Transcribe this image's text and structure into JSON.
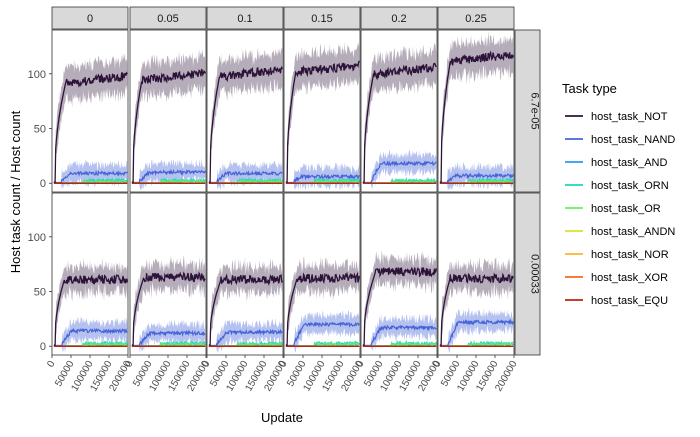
{
  "chart_data": {
    "type": "line",
    "xlabel": "Update",
    "ylabel": "Host task count / Host count",
    "legend_title": "Task type",
    "legend_placement": "right",
    "x_ticks": [
      "50000",
      "100000",
      "150000",
      "200000"
    ],
    "x_tick_values": [
      50000,
      100000,
      150000,
      200000
    ],
    "y_ticks": [
      "0",
      "50",
      "100"
    ],
    "y_tick_values": [
      0,
      50,
      100
    ],
    "xlim": [
      0,
      200000
    ],
    "ylim": [
      -8,
      140
    ],
    "grid": false,
    "col_facets": [
      "0",
      "0.05",
      "0.1",
      "0.15",
      "0.2",
      "0.25"
    ],
    "row_facets": [
      "6.7e-05",
      "0.00033"
    ],
    "series": [
      {
        "name": "host_task_NOT",
        "color": "#2D1339"
      },
      {
        "name": "host_task_NAND",
        "color": "#4664D8"
      },
      {
        "name": "host_task_AND",
        "color": "#2B9AF0"
      },
      {
        "name": "host_task_ORN",
        "color": "#23D5B6"
      },
      {
        "name": "host_task_OR",
        "color": "#62F45A"
      },
      {
        "name": "host_task_ANDN",
        "color": "#D4E332"
      },
      {
        "name": "host_task_NOR",
        "color": "#FBB52E"
      },
      {
        "name": "host_task_XOR",
        "color": "#F06B1B"
      },
      {
        "name": "host_task_EQU",
        "color": "#BC250B"
      }
    ],
    "panels": [
      {
        "row": 0,
        "col": 0,
        "NOT_plateau": 92,
        "NAND_level": 9
      },
      {
        "row": 0,
        "col": 1,
        "NOT_plateau": 95,
        "NAND_level": 10
      },
      {
        "row": 0,
        "col": 2,
        "NOT_plateau": 98,
        "NAND_level": 9
      },
      {
        "row": 0,
        "col": 3,
        "NOT_plateau": 102,
        "NAND_level": 6
      },
      {
        "row": 0,
        "col": 4,
        "NOT_plateau": 100,
        "NAND_level": 18
      },
      {
        "row": 0,
        "col": 5,
        "NOT_plateau": 112,
        "NAND_level": 7
      },
      {
        "row": 1,
        "col": 0,
        "NOT_plateau": 61,
        "NAND_level": 14
      },
      {
        "row": 1,
        "col": 1,
        "NOT_plateau": 63,
        "NAND_level": 12
      },
      {
        "row": 1,
        "col": 2,
        "NOT_plateau": 61,
        "NAND_level": 13
      },
      {
        "row": 1,
        "col": 3,
        "NOT_plateau": 62,
        "NAND_level": 20
      },
      {
        "row": 1,
        "col": 4,
        "NOT_plateau": 68,
        "NAND_level": 17
      },
      {
        "row": 1,
        "col": 5,
        "NOT_plateau": 62,
        "NAND_level": 22
      }
    ]
  }
}
